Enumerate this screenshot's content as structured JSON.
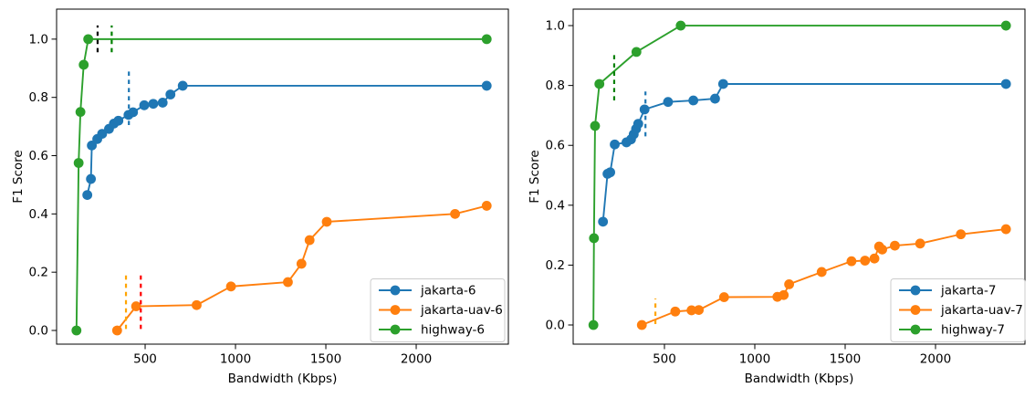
{
  "figure": {
    "background": "#ffffff",
    "palette": {
      "blue": "#1f77b4",
      "orange": "#ff7f0e",
      "green": "#2ca02c",
      "dash_black": "#000000",
      "dash_green": "#008000",
      "dash_orange": "#ffa500",
      "dash_red": "#ff0000"
    }
  },
  "chart_data": [
    {
      "id": "left",
      "type": "line",
      "title": "",
      "xlabel": "Bandwidth (Kbps)",
      "ylabel": "F1 Score",
      "xticks": [
        500,
        1000,
        1500,
        2000
      ],
      "yticks": [
        0.0,
        0.2,
        0.4,
        0.6,
        0.8,
        1.0
      ],
      "xlim": [
        10,
        2510
      ],
      "ylim": [
        -0.047,
        1.103
      ],
      "grid": false,
      "legend_position": "lower right",
      "series": [
        {
          "name": "jakarta-6",
          "color": "#1f77b4",
          "x": [
            180,
            200,
            205,
            235,
            262,
            300,
            327,
            352,
            408,
            433,
            495,
            545,
            597,
            640,
            708,
            2390
          ],
          "y": [
            0.465,
            0.52,
            0.635,
            0.657,
            0.675,
            0.692,
            0.71,
            0.72,
            0.74,
            0.749,
            0.773,
            0.778,
            0.782,
            0.81,
            0.84,
            0.84
          ]
        },
        {
          "name": "jakarta-uav-6",
          "color": "#ff7f0e",
          "x": [
            345,
            450,
            785,
            975,
            1290,
            1365,
            1410,
            1505,
            2215,
            2390
          ],
          "y": [
            0.0,
            0.083,
            0.087,
            0.151,
            0.166,
            0.229,
            0.31,
            0.373,
            0.4,
            0.428
          ]
        },
        {
          "name": "highway-6",
          "color": "#2ca02c",
          "x": [
            120,
            132,
            142,
            160,
            185,
            2390
          ],
          "y": [
            0.0,
            0.575,
            0.75,
            0.912,
            1.0,
            1.0
          ]
        }
      ],
      "vlines": [
        {
          "x": 237,
          "y0": 0.955,
          "y1": 1.047,
          "color": "#000000"
        },
        {
          "x": 315,
          "y0": 0.955,
          "y1": 1.047,
          "color": "#008000"
        },
        {
          "x": 410,
          "y0": 0.705,
          "y1": 0.9,
          "color": "#1f77b4"
        },
        {
          "x": 394,
          "y0": 0.005,
          "y1": 0.19,
          "color": "#ffa500"
        },
        {
          "x": 476,
          "y0": 0.005,
          "y1": 0.195,
          "color": "#ff0000"
        }
      ]
    },
    {
      "id": "right",
      "type": "line",
      "title": "",
      "xlabel": "Bandwidth (Kbps)",
      "ylabel": "F1 Score",
      "xticks": [
        500,
        1000,
        1500,
        2000
      ],
      "yticks": [
        0.0,
        0.2,
        0.4,
        0.6,
        0.8,
        1.0
      ],
      "xlim": [
        -5,
        2495
      ],
      "ylim": [
        -0.064,
        1.055
      ],
      "grid": false,
      "legend_position": "lower right",
      "series": [
        {
          "name": "jakarta-7",
          "color": "#1f77b4",
          "x": [
            160,
            185,
            200,
            225,
            290,
            315,
            330,
            343,
            355,
            390,
            520,
            660,
            780,
            825,
            2390
          ],
          "y": [
            0.345,
            0.505,
            0.51,
            0.603,
            0.61,
            0.62,
            0.637,
            0.655,
            0.672,
            0.72,
            0.745,
            0.75,
            0.756,
            0.805,
            0.805
          ]
        },
        {
          "name": "jakarta-uav-7",
          "color": "#ff7f0e",
          "x": [
            375,
            560,
            650,
            690,
            830,
            1125,
            1160,
            1190,
            1370,
            1535,
            1610,
            1662,
            1688,
            1705,
            1775,
            1915,
            2140,
            2390
          ],
          "y": [
            0.0,
            0.045,
            0.049,
            0.05,
            0.093,
            0.094,
            0.1,
            0.136,
            0.177,
            0.213,
            0.215,
            0.222,
            0.262,
            0.252,
            0.265,
            0.272,
            0.303,
            0.32
          ]
        },
        {
          "name": "highway-7",
          "color": "#2ca02c",
          "x": [
            107,
            110,
            116,
            140,
            345,
            590,
            2390
          ],
          "y": [
            0.0,
            0.29,
            0.665,
            0.805,
            0.912,
            1.0,
            1.0
          ]
        }
      ],
      "vlines": [
        {
          "x": 222,
          "y0": 0.75,
          "y1": 0.902,
          "color": "#008000"
        },
        {
          "x": 395,
          "y0": 0.63,
          "y1": 0.78,
          "color": "#1f77b4"
        },
        {
          "x": 450,
          "y0": 0.003,
          "y1": 0.088,
          "color": "#ffa500"
        }
      ]
    }
  ]
}
